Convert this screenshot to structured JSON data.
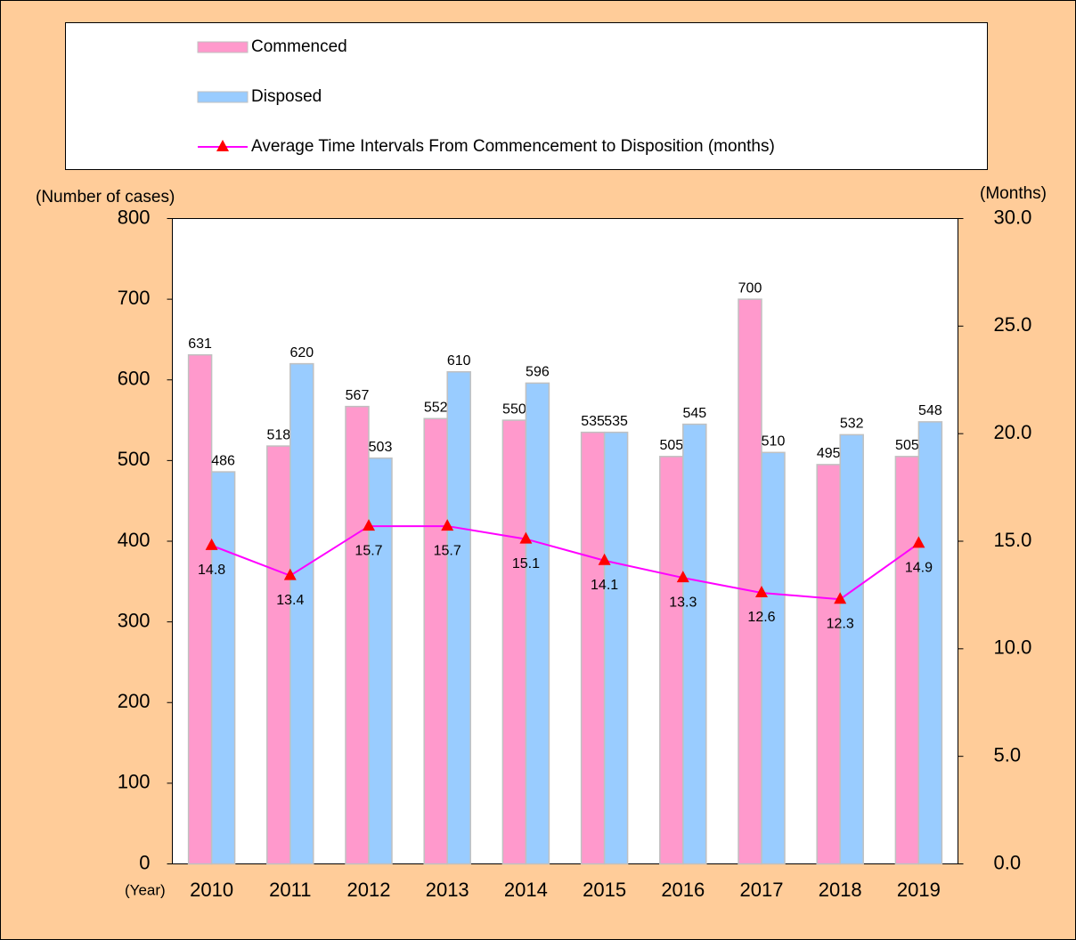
{
  "chart_data": {
    "type": "bar_line",
    "y_label": "(Number of cases)",
    "y2_label": "(Months)",
    "x_label": "(Year)",
    "categories": [
      "2010",
      "2011",
      "2012",
      "2013",
      "2014",
      "2015",
      "2016",
      "2017",
      "2018",
      "2019"
    ],
    "series": [
      {
        "name": "Commenced",
        "color": "#ff99cc",
        "values": [
          631,
          518,
          567,
          552,
          550,
          535,
          505,
          700,
          495,
          505
        ]
      },
      {
        "name": "Disposed",
        "color": "#99ccff",
        "values": [
          486,
          620,
          503,
          610,
          596,
          535,
          545,
          510,
          532,
          548
        ]
      },
      {
        "name": "Average Time Intervals From Commencement to Disposition  (months)",
        "color": "#ff00ff",
        "marker_color": "#ff0000",
        "axis": "y2",
        "values": [
          14.8,
          13.4,
          15.7,
          15.7,
          15.1,
          14.1,
          13.3,
          12.6,
          12.3,
          14.9
        ]
      }
    ],
    "ylim": [
      0,
      800
    ],
    "yticks": [
      0,
      100,
      200,
      300,
      400,
      500,
      600,
      700,
      800
    ],
    "y2lim": [
      0,
      30
    ],
    "y2ticks": [
      {
        "value": 0,
        "label": "0.0"
      },
      {
        "value": 5,
        "label": "5.0"
      },
      {
        "value": 10,
        "label": "10.0"
      },
      {
        "value": 15,
        "label": "15.0"
      },
      {
        "value": 20,
        "label": "20.0"
      },
      {
        "value": 25,
        "label": "25.0"
      },
      {
        "value": 30,
        "label": "30.0"
      }
    ],
    "grid": false
  }
}
